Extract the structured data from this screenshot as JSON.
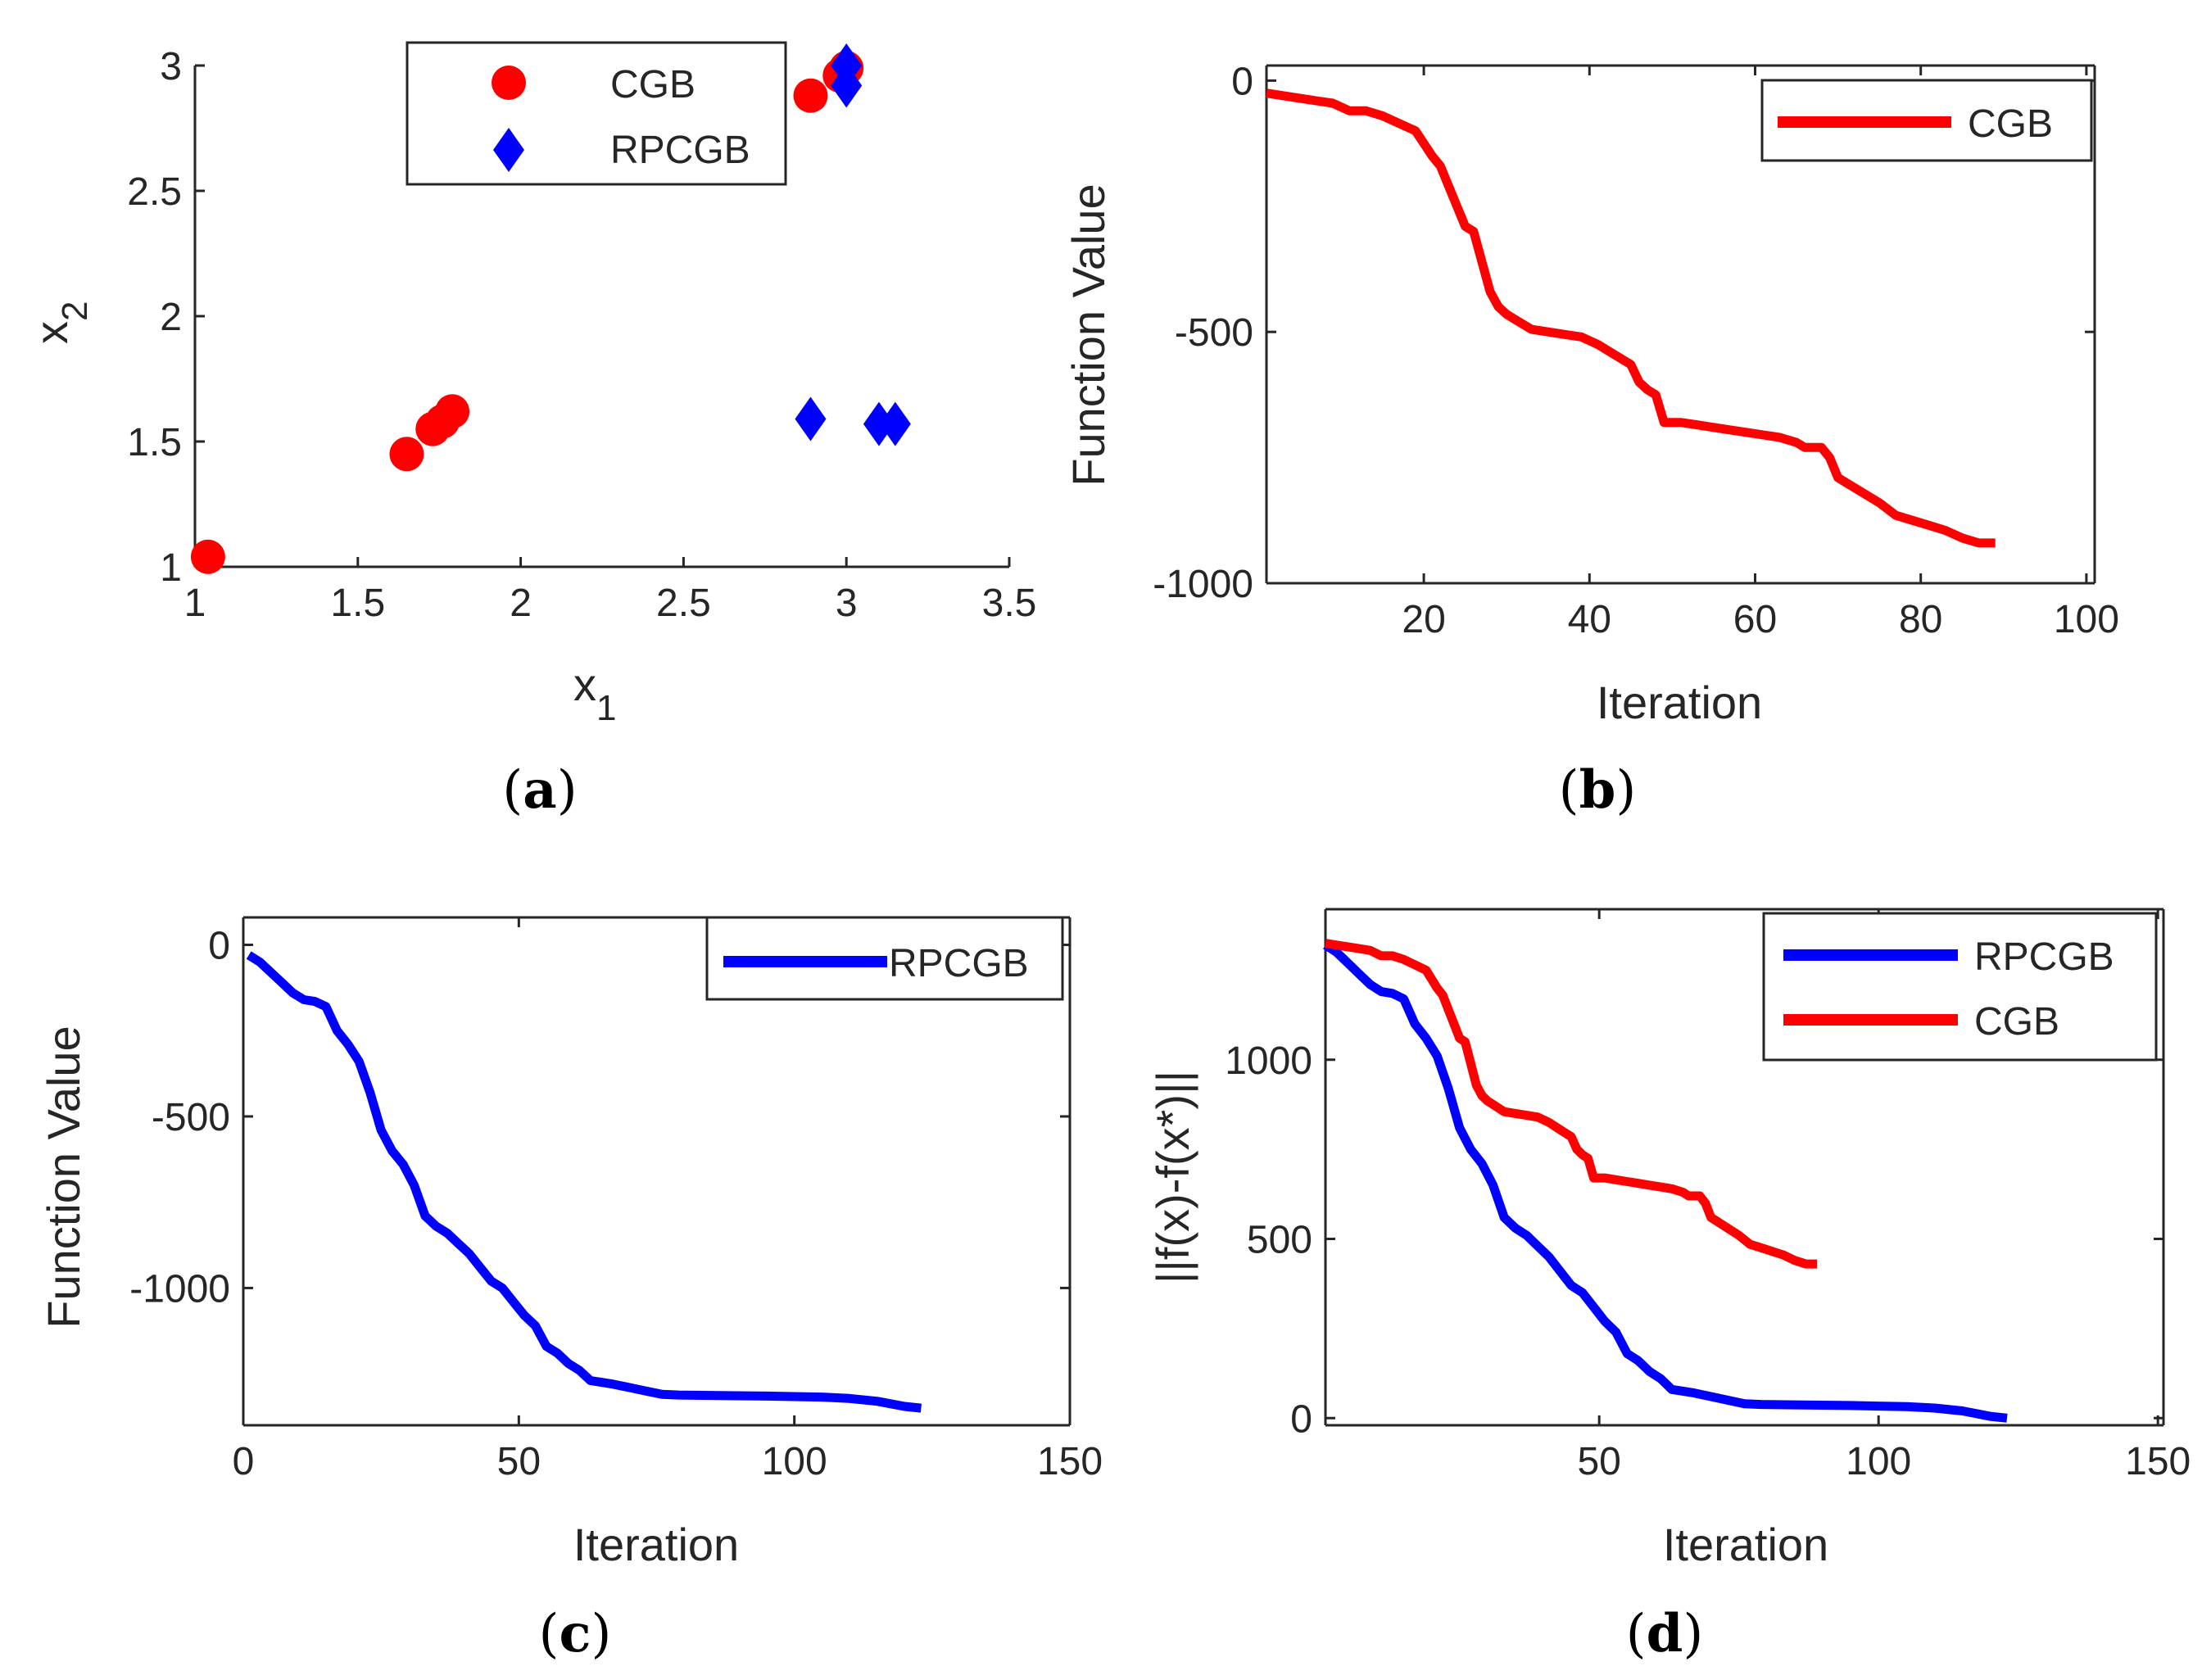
{
  "figure": {
    "panels": [
      {
        "id": "a",
        "caption_letter": "a"
      },
      {
        "id": "b",
        "caption_letter": "b"
      },
      {
        "id": "c",
        "caption_letter": "c"
      },
      {
        "id": "d",
        "caption_letter": "d"
      }
    ]
  },
  "colors": {
    "cgb": "#ff0000",
    "rpcgb": "#0000ff",
    "axis": "#262626"
  },
  "chart_data": [
    {
      "id": "a",
      "type": "scatter",
      "title": "",
      "xlabel": "x",
      "xlabel_sub": "1",
      "ylabel": "x",
      "ylabel_sub": "2",
      "xlim": [
        1,
        3.5
      ],
      "ylim": [
        1,
        3
      ],
      "xticks": [
        1,
        1.5,
        2,
        2.5,
        3,
        3.5
      ],
      "xtick_labels": [
        "1",
        "1.5",
        "2",
        "2.5",
        "3",
        "3.5"
      ],
      "yticks": [
        1,
        1.5,
        2,
        2.5,
        3
      ],
      "ytick_labels": [
        "1",
        "1.5",
        "2",
        "2.5",
        "3"
      ],
      "legend_position": "top-right",
      "series": [
        {
          "name": "CGB",
          "marker": "circle",
          "color": "#ff0000",
          "x": [
            1.04,
            1.65,
            1.73,
            1.76,
            1.79,
            2.89,
            2.98,
            3.0
          ],
          "y": [
            1.04,
            1.45,
            1.55,
            1.58,
            1.62,
            2.88,
            2.96,
            2.99
          ]
        },
        {
          "name": "RPCGB",
          "marker": "diamond",
          "color": "#0000ff",
          "x": [
            2.89,
            3.1,
            3.15,
            3.0,
            3.0
          ],
          "y": [
            1.59,
            1.57,
            1.57,
            2.92,
            3.0
          ]
        }
      ]
    },
    {
      "id": "b",
      "type": "line",
      "title": "",
      "xlabel": "Iteration",
      "ylabel": "Function Value",
      "xlim": [
        1,
        101
      ],
      "ylim": [
        -1000,
        30
      ],
      "xticks": [
        20,
        40,
        60,
        80,
        100
      ],
      "xtick_labels": [
        "20",
        "40",
        "60",
        "80",
        "100"
      ],
      "yticks": [
        -1000,
        -500,
        0
      ],
      "ytick_labels": [
        "-1000",
        "-500",
        "0"
      ],
      "legend_position": "top-right",
      "series": [
        {
          "name": "CGB",
          "color": "#ff0000",
          "x": [
            1,
            3,
            5,
            7,
            9,
            11,
            13,
            15,
            17,
            19,
            21,
            22,
            23,
            24,
            25,
            26,
            27,
            28,
            29,
            30,
            31,
            33,
            35,
            37,
            39,
            41,
            43,
            45,
            46,
            47,
            48,
            49,
            51,
            53,
            55,
            57,
            59,
            61,
            63,
            65,
            66,
            67,
            68,
            69,
            70,
            71,
            73,
            75,
            77,
            79,
            81,
            83,
            85,
            87,
            89
          ],
          "y": [
            -25,
            -30,
            -35,
            -40,
            -45,
            -60,
            -60,
            -70,
            -85,
            -100,
            -150,
            -170,
            -210,
            -250,
            -290,
            -300,
            -360,
            -420,
            -450,
            -465,
            -475,
            -495,
            -500,
            -505,
            -510,
            -525,
            -545,
            -565,
            -600,
            -615,
            -625,
            -680,
            -680,
            -685,
            -690,
            -695,
            -700,
            -705,
            -710,
            -720,
            -730,
            -730,
            -730,
            -750,
            -790,
            -800,
            -820,
            -840,
            -865,
            -875,
            -885,
            -895,
            -910,
            -920,
            -920
          ]
        }
      ]
    },
    {
      "id": "c",
      "type": "line",
      "title": "",
      "xlabel": "Iteration",
      "ylabel": "Function Value",
      "xlim": [
        0,
        150
      ],
      "ylim": [
        -1400,
        80
      ],
      "xticks": [
        0,
        50,
        100,
        150
      ],
      "xtick_labels": [
        "0",
        "50",
        "100",
        "150"
      ],
      "yticks": [
        -1000,
        -500,
        0
      ],
      "ytick_labels": [
        "-1000",
        "-500",
        "0"
      ],
      "legend_position": "top-right",
      "series": [
        {
          "name": "RPCGB",
          "color": "#0000ff",
          "x": [
            1,
            3,
            5,
            7,
            9,
            11,
            13,
            15,
            17,
            19,
            21,
            23,
            25,
            27,
            29,
            31,
            33,
            35,
            37,
            39,
            41,
            43,
            45,
            47,
            49,
            51,
            53,
            55,
            57,
            59,
            61,
            63,
            65,
            67,
            70,
            73,
            76,
            79,
            85,
            95,
            105,
            110,
            115,
            120,
            123
          ],
          "y": [
            -30,
            -50,
            -80,
            -110,
            -140,
            -160,
            -165,
            -180,
            -250,
            -290,
            -340,
            -430,
            -540,
            -600,
            -640,
            -700,
            -790,
            -820,
            -840,
            -870,
            -900,
            -940,
            -980,
            -1000,
            -1040,
            -1080,
            -1110,
            -1170,
            -1190,
            -1220,
            -1240,
            -1270,
            -1275,
            -1280,
            -1290,
            -1300,
            -1310,
            -1312,
            -1313,
            -1315,
            -1318,
            -1322,
            -1330,
            -1345,
            -1350
          ]
        }
      ]
    },
    {
      "id": "d",
      "type": "line",
      "title": "",
      "xlabel": "Iteration",
      "ylabel": "||f(x)-f(x*)||",
      "xlim": [
        1,
        151
      ],
      "ylim": [
        -20,
        1420
      ],
      "xticks": [
        50,
        100,
        150
      ],
      "xtick_labels": [
        "50",
        "100",
        "150"
      ],
      "yticks": [
        0,
        500,
        1000
      ],
      "ytick_labels": [
        "0",
        "500",
        "1000"
      ],
      "legend_position": "top-right",
      "series": [
        {
          "name": "RPCGB",
          "color": "#0000ff",
          "x": [
            1,
            3,
            5,
            7,
            9,
            11,
            13,
            15,
            17,
            19,
            21,
            23,
            25,
            27,
            29,
            31,
            33,
            35,
            37,
            39,
            41,
            43,
            45,
            47,
            49,
            51,
            53,
            55,
            57,
            59,
            61,
            63,
            65,
            67,
            70,
            73,
            76,
            79,
            85,
            95,
            105,
            110,
            115,
            120,
            123
          ],
          "y": [
            1320,
            1300,
            1270,
            1240,
            1210,
            1190,
            1185,
            1170,
            1100,
            1060,
            1010,
            920,
            810,
            750,
            710,
            650,
            560,
            530,
            510,
            480,
            450,
            410,
            370,
            350,
            310,
            270,
            240,
            180,
            160,
            130,
            110,
            80,
            75,
            70,
            60,
            50,
            40,
            38,
            37,
            35,
            32,
            28,
            20,
            5,
            0
          ]
        },
        {
          "name": "CGB",
          "color": "#ff0000",
          "x": [
            1,
            3,
            5,
            7,
            9,
            11,
            13,
            15,
            17,
            19,
            21,
            22,
            23,
            24,
            25,
            26,
            27,
            28,
            29,
            30,
            31,
            33,
            35,
            37,
            39,
            41,
            43,
            45,
            46,
            47,
            48,
            49,
            51,
            53,
            55,
            57,
            59,
            61,
            63,
            65,
            66,
            67,
            68,
            69,
            70,
            71,
            73,
            75,
            77,
            79,
            81,
            83,
            85,
            87,
            89
          ],
          "y": [
            1325,
            1320,
            1315,
            1310,
            1305,
            1290,
            1290,
            1280,
            1265,
            1250,
            1200,
            1180,
            1140,
            1100,
            1060,
            1050,
            990,
            930,
            900,
            885,
            875,
            855,
            850,
            845,
            840,
            825,
            805,
            785,
            750,
            735,
            725,
            670,
            670,
            665,
            660,
            655,
            650,
            645,
            640,
            630,
            620,
            620,
            620,
            600,
            560,
            550,
            530,
            510,
            485,
            475,
            465,
            455,
            440,
            430,
            430
          ]
        }
      ]
    }
  ]
}
